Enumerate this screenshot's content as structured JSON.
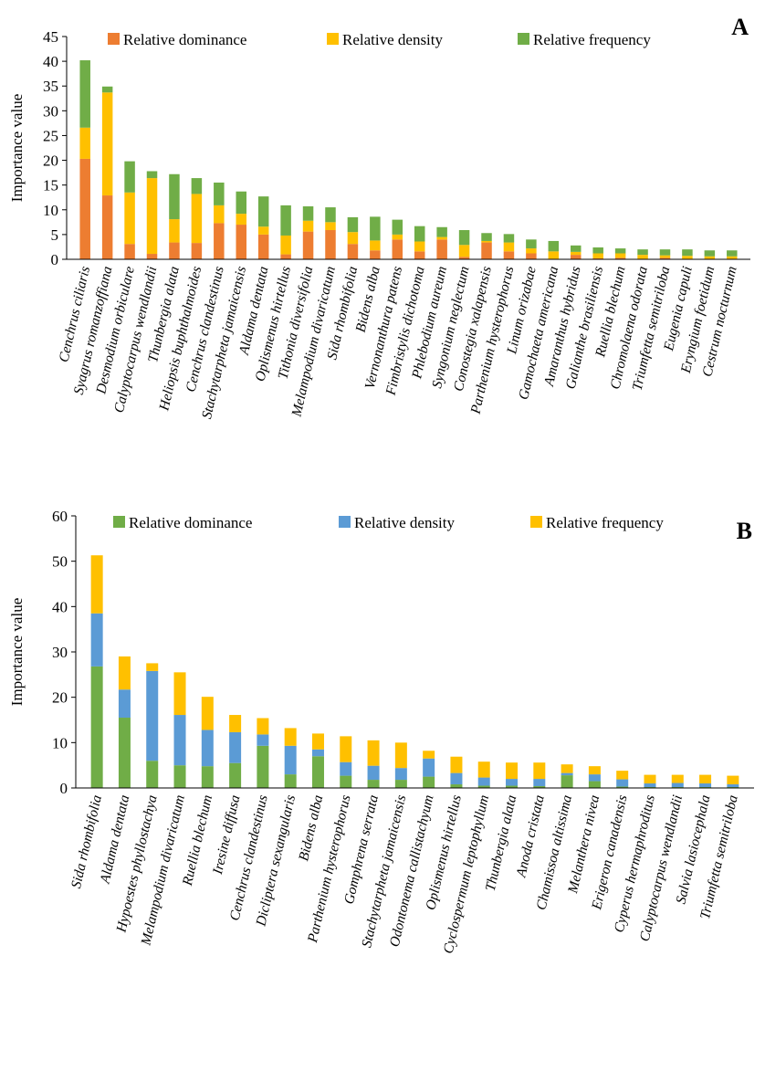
{
  "chart_data": [
    {
      "type": "bar",
      "stacked": true,
      "panel_label": "A",
      "ylabel": "Importance value",
      "ylim": [
        0,
        45
      ],
      "yticks": [
        0,
        5,
        10,
        15,
        20,
        25,
        30,
        35,
        40,
        45
      ],
      "grid": false,
      "legend_position": "top",
      "categories": [
        "Cenchrus ciliaris",
        "Syagrus romanzoffiana",
        "Desmodium orbiculare",
        "Calyptocarpus wendlandii",
        "Thunbergia alata",
        "Heliopsis buphthalmoides",
        "Cenchrus clandestinus",
        "Stachytarpheta jamaicensis",
        "Aldama dentata",
        "Oplismenus hirtellus",
        "Tithonia diversifolia",
        "Melampodium divaricatum",
        "Sida rhombifolia",
        "Bidens alba",
        "Vernonanthura patens",
        "Fimbristylis dichotoma",
        "Phlebodium aureum",
        "Syngonium neglectum",
        "Conostegia xalapensis",
        "Parthenium hysterophorus",
        "Linum orizabae",
        "Gamochaeta americana",
        "Amaranthus hybridus",
        "Galianthe brasiliensis",
        "Ruellia blechum",
        "Chromolaena odorata",
        "Triumfetta semitriloba",
        "Eugenia capuli",
        "Eryngium foetidum",
        "Cestrum nocturnum"
      ],
      "series": [
        {
          "name": "Relative dominance",
          "color": "#ED7D31",
          "values": [
            20.3,
            12.9,
            3.1,
            1.1,
            3.4,
            3.3,
            7.3,
            7.0,
            5.0,
            1.0,
            5.6,
            5.9,
            3.1,
            1.8,
            4.0,
            1.6,
            4.0,
            0.5,
            3.4,
            1.6,
            1.2,
            0.1,
            0.9,
            0.2,
            0.3,
            0.1,
            0.3,
            0.1,
            0.1,
            0.1
          ]
        },
        {
          "name": "Relative density",
          "color": "#FFC000",
          "values": [
            6.3,
            20.8,
            10.4,
            15.3,
            4.7,
            9.9,
            3.6,
            2.2,
            1.6,
            3.8,
            2.2,
            1.6,
            2.4,
            2.0,
            1.0,
            2.0,
            0.5,
            2.4,
            0.3,
            1.8,
            1.0,
            1.5,
            0.6,
            1.0,
            0.9,
            0.8,
            0.5,
            0.6,
            0.5,
            0.5
          ]
        },
        {
          "name": "Relative frequency",
          "color": "#70AD47",
          "values": [
            13.6,
            1.2,
            6.3,
            1.4,
            9.1,
            3.2,
            4.6,
            4.5,
            6.1,
            6.1,
            2.9,
            3.0,
            3.0,
            4.8,
            3.0,
            3.1,
            2.0,
            3.0,
            1.6,
            1.7,
            1.8,
            2.1,
            1.3,
            1.2,
            1.0,
            1.1,
            1.2,
            1.3,
            1.2,
            1.2
          ]
        }
      ]
    },
    {
      "type": "bar",
      "stacked": true,
      "panel_label": "B",
      "ylabel": "Importance value",
      "ylim": [
        0,
        60
      ],
      "yticks": [
        0,
        10,
        20,
        30,
        40,
        50,
        60
      ],
      "grid": false,
      "legend_position": "top",
      "categories": [
        "Sida rhombifolia",
        "Aldama dentata",
        "Hypoestes phyllostachya",
        "Melampodium divaricatum",
        "Ruellia blechum",
        "Iresine diffusa",
        "Cenchrus clandestinus",
        "Dicliptera sexangularis",
        "Bidens alba",
        "Parthenium hysterophorus",
        "Gomphrena serrata",
        "Stachytarpheta jamaicensis",
        "Odontonema callistachyum",
        "Oplismenus hirtellus",
        "Cyclospermum leptophyllum",
        "Thunbergia alata",
        "Anoda cristata",
        "Chamissoa altissima",
        "Melanthera nivea",
        "Erigeron canadensis",
        "Cyperus hermaphroditus",
        "Calyptocarpus wendlandii",
        "Salvia lasiocephala",
        "Triumfetta semitriloba"
      ],
      "series": [
        {
          "name": "Relative dominance",
          "color": "#70AD47",
          "values": [
            26.8,
            15.5,
            6.0,
            5.0,
            4.8,
            5.5,
            9.3,
            3.0,
            7.0,
            2.7,
            1.8,
            1.8,
            2.5,
            0.8,
            0.5,
            0.5,
            0.4,
            2.8,
            1.5,
            0.3,
            0.2,
            0.2,
            0.2,
            0.2
          ]
        },
        {
          "name": "Relative density",
          "color": "#5B9BD5",
          "values": [
            11.7,
            6.2,
            19.8,
            11.1,
            8.0,
            6.8,
            2.5,
            6.3,
            1.5,
            3.0,
            3.1,
            2.6,
            4.0,
            2.5,
            1.8,
            1.5,
            1.6,
            0.5,
            1.5,
            1.6,
            0.8,
            0.9,
            0.8,
            0.6
          ]
        },
        {
          "name": "Relative frequency",
          "color": "#FFC000",
          "values": [
            12.8,
            7.3,
            1.7,
            9.4,
            7.3,
            3.8,
            3.6,
            3.9,
            3.5,
            5.7,
            5.6,
            5.6,
            1.7,
            3.6,
            3.5,
            3.6,
            3.6,
            1.9,
            1.8,
            1.9,
            1.9,
            1.8,
            1.9,
            1.9
          ]
        }
      ]
    }
  ]
}
